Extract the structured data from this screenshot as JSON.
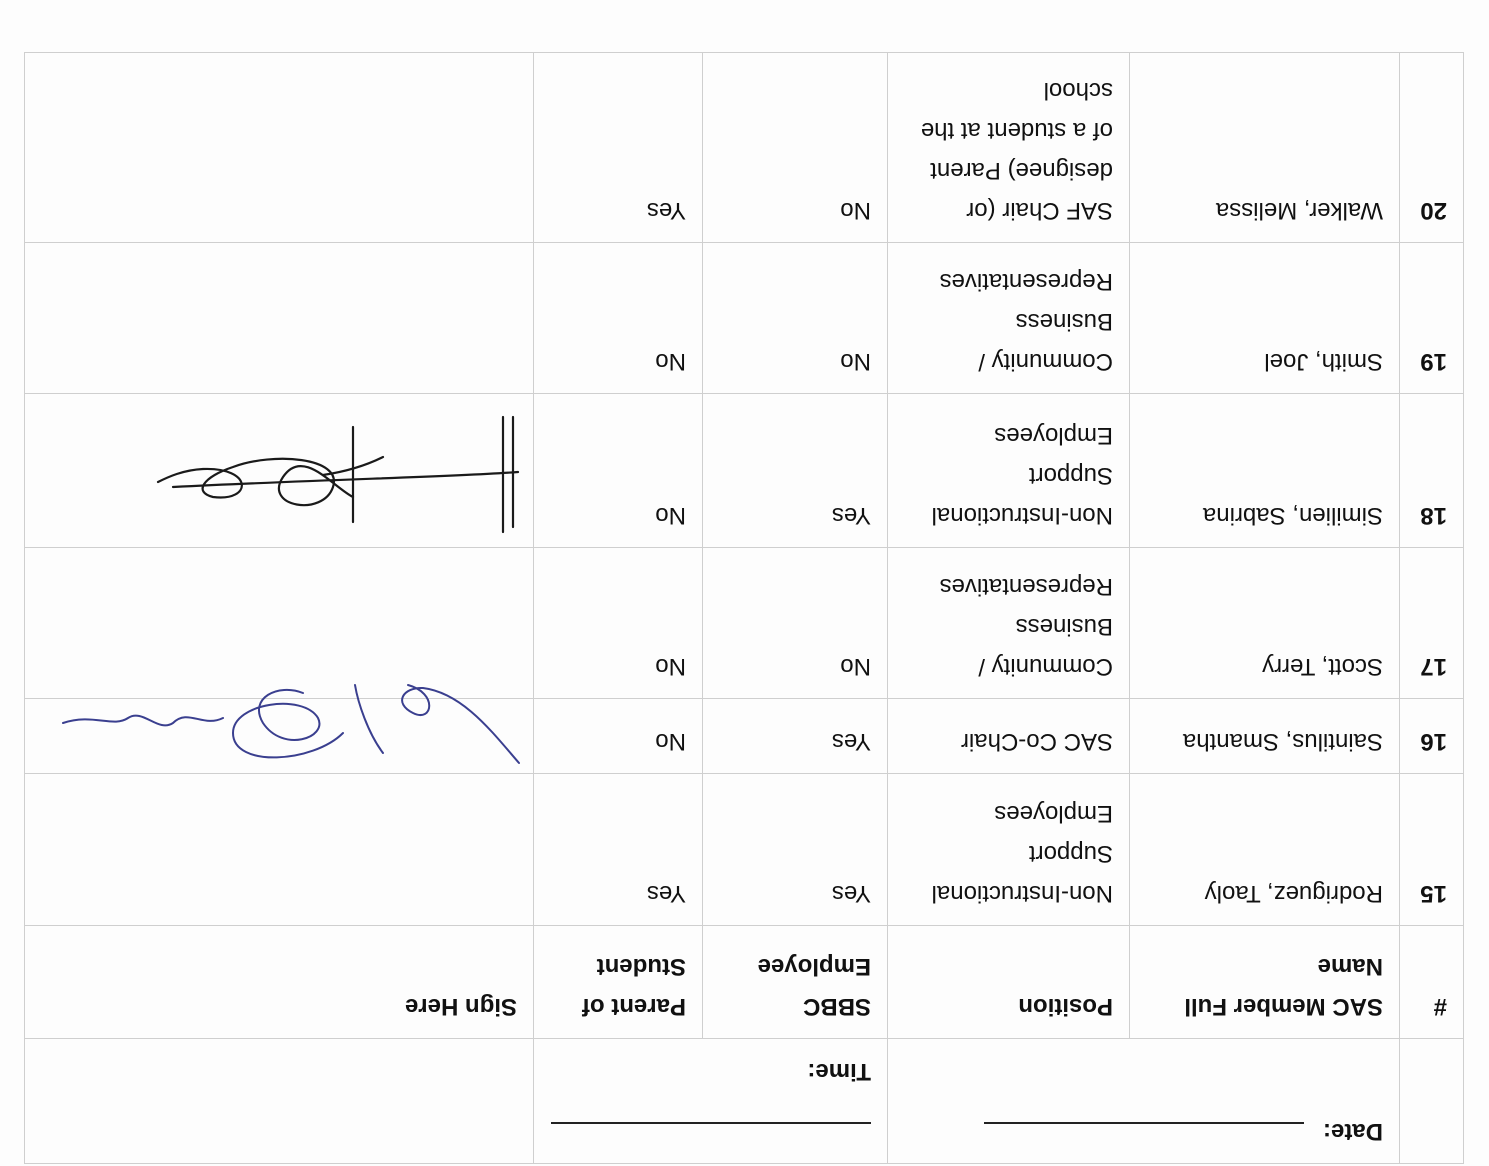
{
  "header": {
    "date_label": "Date:",
    "time_label": "Time:"
  },
  "columns": {
    "num": "#",
    "name": "SAC Member Full Name",
    "position": "Position",
    "sbbc": "SBBC Employee",
    "parent": "Parent of Student",
    "sign": "Sign Here"
  },
  "rows": [
    {
      "num": "15",
      "name": "Rodriguez, Taoly",
      "position": "Non-Instructional Support Employees",
      "sbbc": "Yes",
      "parent": "Yes",
      "signed": false
    },
    {
      "num": "16",
      "name": "Saintilus, Smantha",
      "position": "SAC Co-Chair",
      "sbbc": "Yes",
      "parent": "No",
      "signed": true
    },
    {
      "num": "17",
      "name": "Scott, Terry",
      "position": "Community / Business Representatives",
      "sbbc": "No",
      "parent": "No",
      "signed": false
    },
    {
      "num": "18",
      "name": "Similien, Sabrina",
      "position": "Non-Instructional Support Employees",
      "sbbc": "Yes",
      "parent": "No",
      "signed": true
    },
    {
      "num": "19",
      "name": "Smith, Joel",
      "position": "Community / Business Representatives",
      "sbbc": "No",
      "parent": "No",
      "signed": false
    },
    {
      "num": "20",
      "name": "Walker, Melissa",
      "position": "SAF Chair (or designee) Parent of a student at the school",
      "sbbc": "No",
      "parent": "Yes",
      "signed": false
    }
  ],
  "colors": {
    "signature_ink_16": "#3a3f8f",
    "signature_ink_18": "#1a1a1a"
  }
}
